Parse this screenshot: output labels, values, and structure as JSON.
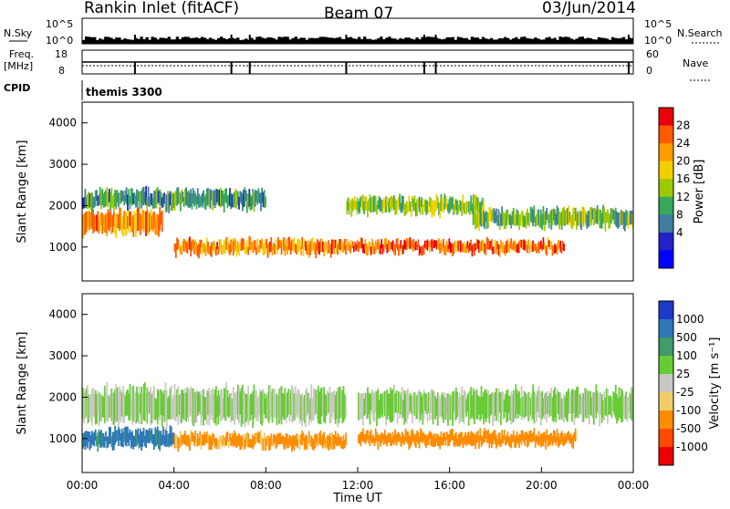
{
  "header": {
    "station": "Rankin Inlet (fitACF)",
    "beam": "Beam 07",
    "date": "03/Jun/2014"
  },
  "summary_panels": {
    "nsky_label": "N.Sky",
    "nsky_ticks": [
      "10^5",
      "10^0"
    ],
    "nsearch_label": "N.Search",
    "nsearch_ticks": [
      "10^5",
      "10^0"
    ],
    "freq_label": "Freq.",
    "freq_unit": "[MHz]",
    "freq_ticks": [
      "18",
      "8"
    ],
    "nave_label": "Nave",
    "nave_ticks": [
      "60",
      "0"
    ],
    "cpid_label": "CPID",
    "cpid_value": "themis 3300"
  },
  "chart_data": [
    {
      "type": "heatmap",
      "title": "",
      "xlabel": "",
      "ylabel": "Slant Range [km]",
      "xlim": [
        0,
        24
      ],
      "ylim": [
        180,
        4500
      ],
      "y_ticks": [
        "1000",
        "2000",
        "3000",
        "4000"
      ],
      "colorbar": {
        "label": "Power [dB]",
        "ticks": [
          "28",
          "24",
          "20",
          "16",
          "12",
          "8",
          "4"
        ],
        "colors": [
          "#e8000b",
          "#ff5a00",
          "#ff9c00",
          "#f2d000",
          "#9ec800",
          "#3aa85a",
          "#3f7c9f",
          "#2222c8",
          "#0000ff"
        ]
      },
      "bands": [
        {
          "t_start": 0.0,
          "t_end": 3.5,
          "range_center": 1600,
          "range_width": 500,
          "level_db": 24
        },
        {
          "t_start": 0.0,
          "t_end": 8.0,
          "range_center": 2150,
          "range_width": 400,
          "level_db": 12
        },
        {
          "t_start": 4.0,
          "t_end": 11.5,
          "range_center": 1000,
          "range_width": 300,
          "level_db": 24
        },
        {
          "t_start": 11.5,
          "t_end": 17.5,
          "range_center": 2000,
          "range_width": 350,
          "level_db": 16
        },
        {
          "t_start": 11.5,
          "t_end": 21.0,
          "range_center": 1000,
          "range_width": 250,
          "level_db": 26
        },
        {
          "t_start": 17.0,
          "t_end": 24.0,
          "range_center": 1700,
          "range_width": 400,
          "level_db": 14
        }
      ]
    },
    {
      "type": "heatmap",
      "title": "",
      "xlabel": "Time UT",
      "ylabel": "Slant Range [km]",
      "xlim": [
        0,
        24
      ],
      "ylim": [
        180,
        4500
      ],
      "x_ticks": [
        "00:00",
        "04:00",
        "08:00",
        "12:00",
        "16:00",
        "20:00",
        "00:00"
      ],
      "y_ticks": [
        "1000",
        "2000",
        "3000",
        "4000"
      ],
      "colorbar": {
        "label": "Velocity [m s⁻¹]",
        "ticks": [
          "1000",
          "500",
          "100",
          "25",
          "-25",
          "-100",
          "-500",
          "-1000"
        ],
        "colors": [
          "#1e3ac8",
          "#2f78b8",
          "#3f9b6a",
          "#66cc33",
          "#c8c8c0",
          "#f2cc66",
          "#ff8c00",
          "#ff4a00",
          "#ee0000"
        ]
      },
      "bands": [
        {
          "t_start": 0.0,
          "t_end": 11.5,
          "range_center": 1800,
          "range_width": 800,
          "velocity": 0
        },
        {
          "t_start": 0.0,
          "t_end": 4.0,
          "range_center": 1000,
          "range_width": 400,
          "velocity": 200
        },
        {
          "t_start": 4.0,
          "t_end": 11.5,
          "range_center": 950,
          "range_width": 300,
          "velocity": -200
        },
        {
          "t_start": 12.0,
          "t_end": 24.0,
          "range_center": 1800,
          "range_width": 700,
          "velocity": 0
        },
        {
          "t_start": 12.0,
          "t_end": 21.5,
          "range_center": 1000,
          "range_width": 300,
          "velocity": -300
        }
      ]
    }
  ]
}
